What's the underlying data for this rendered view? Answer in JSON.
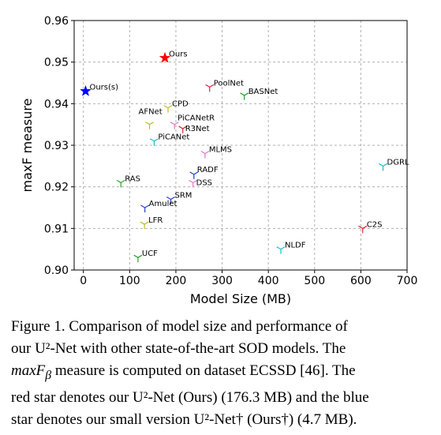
{
  "chart_data": {
    "type": "scatter",
    "title": "",
    "xlabel": "Model Size (MB)",
    "ylabel": "maxF measure",
    "xlim": [
      -20,
      700
    ],
    "ylim": [
      0.9,
      0.96
    ],
    "xticks": [
      "0",
      "100",
      "200",
      "300",
      "400",
      "500",
      "600",
      "700"
    ],
    "yticks": [
      "0.90",
      "0.91",
      "0.92",
      "0.93",
      "0.94",
      "0.95",
      "0.96"
    ],
    "grid": true,
    "points": [
      {
        "label": "Ours",
        "x": 176.3,
        "y": 0.951,
        "marker": "star",
        "color": "#ff0000"
      },
      {
        "label": "Ours(s)",
        "x": 4.7,
        "y": 0.943,
        "marker": "star",
        "color": "#0000ff"
      },
      {
        "label": "PoolNet",
        "x": 273,
        "y": 0.944,
        "marker": "tri",
        "color": "#e6194b"
      },
      {
        "label": "BASNet",
        "x": 348,
        "y": 0.942,
        "marker": "tri",
        "color": "#2ca02c"
      },
      {
        "label": "CPD",
        "x": 183,
        "y": 0.939,
        "marker": "tri",
        "color": "#bcbd22"
      },
      {
        "label": "AFNet",
        "x": 143,
        "y": 0.935,
        "marker": "tri",
        "color": "#bcbd22"
      },
      {
        "label": "PiCANetR",
        "x": 197,
        "y": 0.935,
        "marker": "tri",
        "color": "#e377c2"
      },
      {
        "label": "R3Net",
        "x": 215,
        "y": 0.934,
        "marker": "tri",
        "color": "#d62728"
      },
      {
        "label": "PiCANet",
        "x": 153,
        "y": 0.931,
        "marker": "tri",
        "color": "#17becf"
      },
      {
        "label": "MLMS",
        "x": 263,
        "y": 0.928,
        "marker": "tri",
        "color": "#e377c2"
      },
      {
        "label": "DGRL",
        "x": 648,
        "y": 0.925,
        "marker": "tri",
        "color": "#17becf"
      },
      {
        "label": "RADF",
        "x": 239,
        "y": 0.923,
        "marker": "tri",
        "color": "#1f3fd0"
      },
      {
        "label": "DSS",
        "x": 237,
        "y": 0.921,
        "marker": "tri",
        "color": "#e377c2"
      },
      {
        "label": "RAS",
        "x": 81,
        "y": 0.921,
        "marker": "tri",
        "color": "#2ca02c"
      },
      {
        "label": "SRM",
        "x": 189,
        "y": 0.917,
        "marker": "tri",
        "color": "#1f3fd0"
      },
      {
        "label": "Amulet",
        "x": 133,
        "y": 0.915,
        "marker": "tri",
        "color": "#1f3fd0"
      },
      {
        "label": "LFR",
        "x": 132,
        "y": 0.911,
        "marker": "tri",
        "color": "#bcbd22"
      },
      {
        "label": "C2S",
        "x": 604,
        "y": 0.91,
        "marker": "tri",
        "color": "#d62728"
      },
      {
        "label": "NLDF",
        "x": 427,
        "y": 0.905,
        "marker": "tri",
        "color": "#17becf"
      },
      {
        "label": "UCF",
        "x": 118,
        "y": 0.903,
        "marker": "tri",
        "color": "#2ca02c"
      }
    ]
  },
  "caption": {
    "lines": [
      "Figure 1. Comparison of model size and performance of",
      "our U²-Net with other state-of-the-art SOD models. The",
      "maxF",
      "β",
      " measure is computed on dataset ECSSD [46]. The",
      "red star denotes our U²-Net (Ours) (176.3 MB) and the blue",
      "star denotes our small version U²-Net† (Ours†) (4.7 MB)."
    ]
  }
}
